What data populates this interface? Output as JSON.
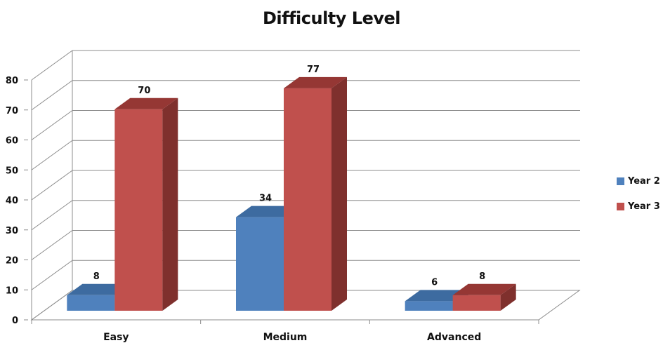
{
  "chart_data": {
    "type": "bar",
    "title": "Difficulty Level",
    "categories": [
      "Easy",
      "Medium",
      "Advanced"
    ],
    "series": [
      {
        "name": "Year 2",
        "values": [
          8,
          34,
          6
        ],
        "color": "#4F81BD",
        "side_color": "#3A6595",
        "top_color": "#3D6BA0"
      },
      {
        "name": "Year 3",
        "values": [
          70,
          77,
          8
        ],
        "color": "#C0504D",
        "side_color": "#7F302D",
        "top_color": "#953734"
      }
    ],
    "ylim": [
      0,
      80
    ],
    "y_ticks": [
      "0",
      "10",
      "20",
      "30",
      "40",
      "50",
      "60",
      "70",
      "80"
    ],
    "grid": true,
    "three_d": true,
    "legend_position": "right",
    "data_labels": true
  }
}
